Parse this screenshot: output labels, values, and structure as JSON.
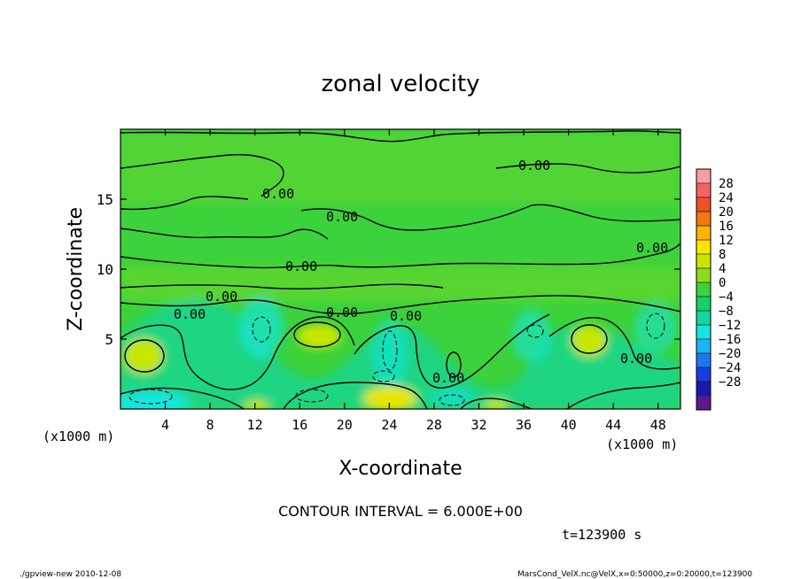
{
  "chart_data": {
    "type": "heatmap",
    "title": "zonal velocity",
    "xlabel": "X-coordinate",
    "ylabel": "Z-coordinate",
    "x_unit_left": "(x1000 m)",
    "x_unit_right": "(x1000 m)",
    "xlim": [
      0,
      50
    ],
    "ylim": [
      0,
      20
    ],
    "xticks": [
      4,
      8,
      12,
      16,
      20,
      24,
      28,
      32,
      36,
      40,
      44,
      48
    ],
    "xtick_labels": [
      "4",
      "8",
      "12",
      "16",
      "20",
      "24",
      "28",
      "32",
      "36",
      "40",
      "44",
      "48"
    ],
    "yticks": [
      5,
      10,
      15
    ],
    "ytick_labels": [
      "5",
      "10",
      "15"
    ],
    "colorbar": {
      "labels": [
        "28",
        "24",
        "20",
        "16",
        "12",
        "8",
        "4",
        "0",
        "−4",
        "−8",
        "−12",
        "−16",
        "−20",
        "−24",
        "−28"
      ],
      "levels": [
        -32,
        -28,
        -24,
        -20,
        -16,
        -12,
        -8,
        -4,
        0,
        4,
        8,
        12,
        16,
        20,
        24,
        28,
        32
      ],
      "colors": [
        "#5a1a8c",
        "#1a1aa8",
        "#1a3ce0",
        "#1e78f0",
        "#1eb4f0",
        "#14e6dc",
        "#14d6a0",
        "#14d264",
        "#3cd23c",
        "#8cdc1e",
        "#c8e600",
        "#fae600",
        "#fab400",
        "#f07814",
        "#f05028",
        "#f06464",
        "#f0a0a0"
      ]
    },
    "contour_interval_text": "CONTOUR INTERVAL = 6.000E+00",
    "contour_labels": [
      "0.00",
      "0.00",
      "0.00",
      "0.00",
      "0.00",
      "0.00",
      "0.00",
      "0.00",
      "0.00",
      "0.00",
      "0.00"
    ],
    "time_text": "t=123900 s",
    "grid": false,
    "legend": "right"
  },
  "footer": {
    "left": "./gpview-new   2010-12-08",
    "right": "MarsCond_VelX.nc@VelX,x=0:50000,z=0:20000,t=123900"
  }
}
